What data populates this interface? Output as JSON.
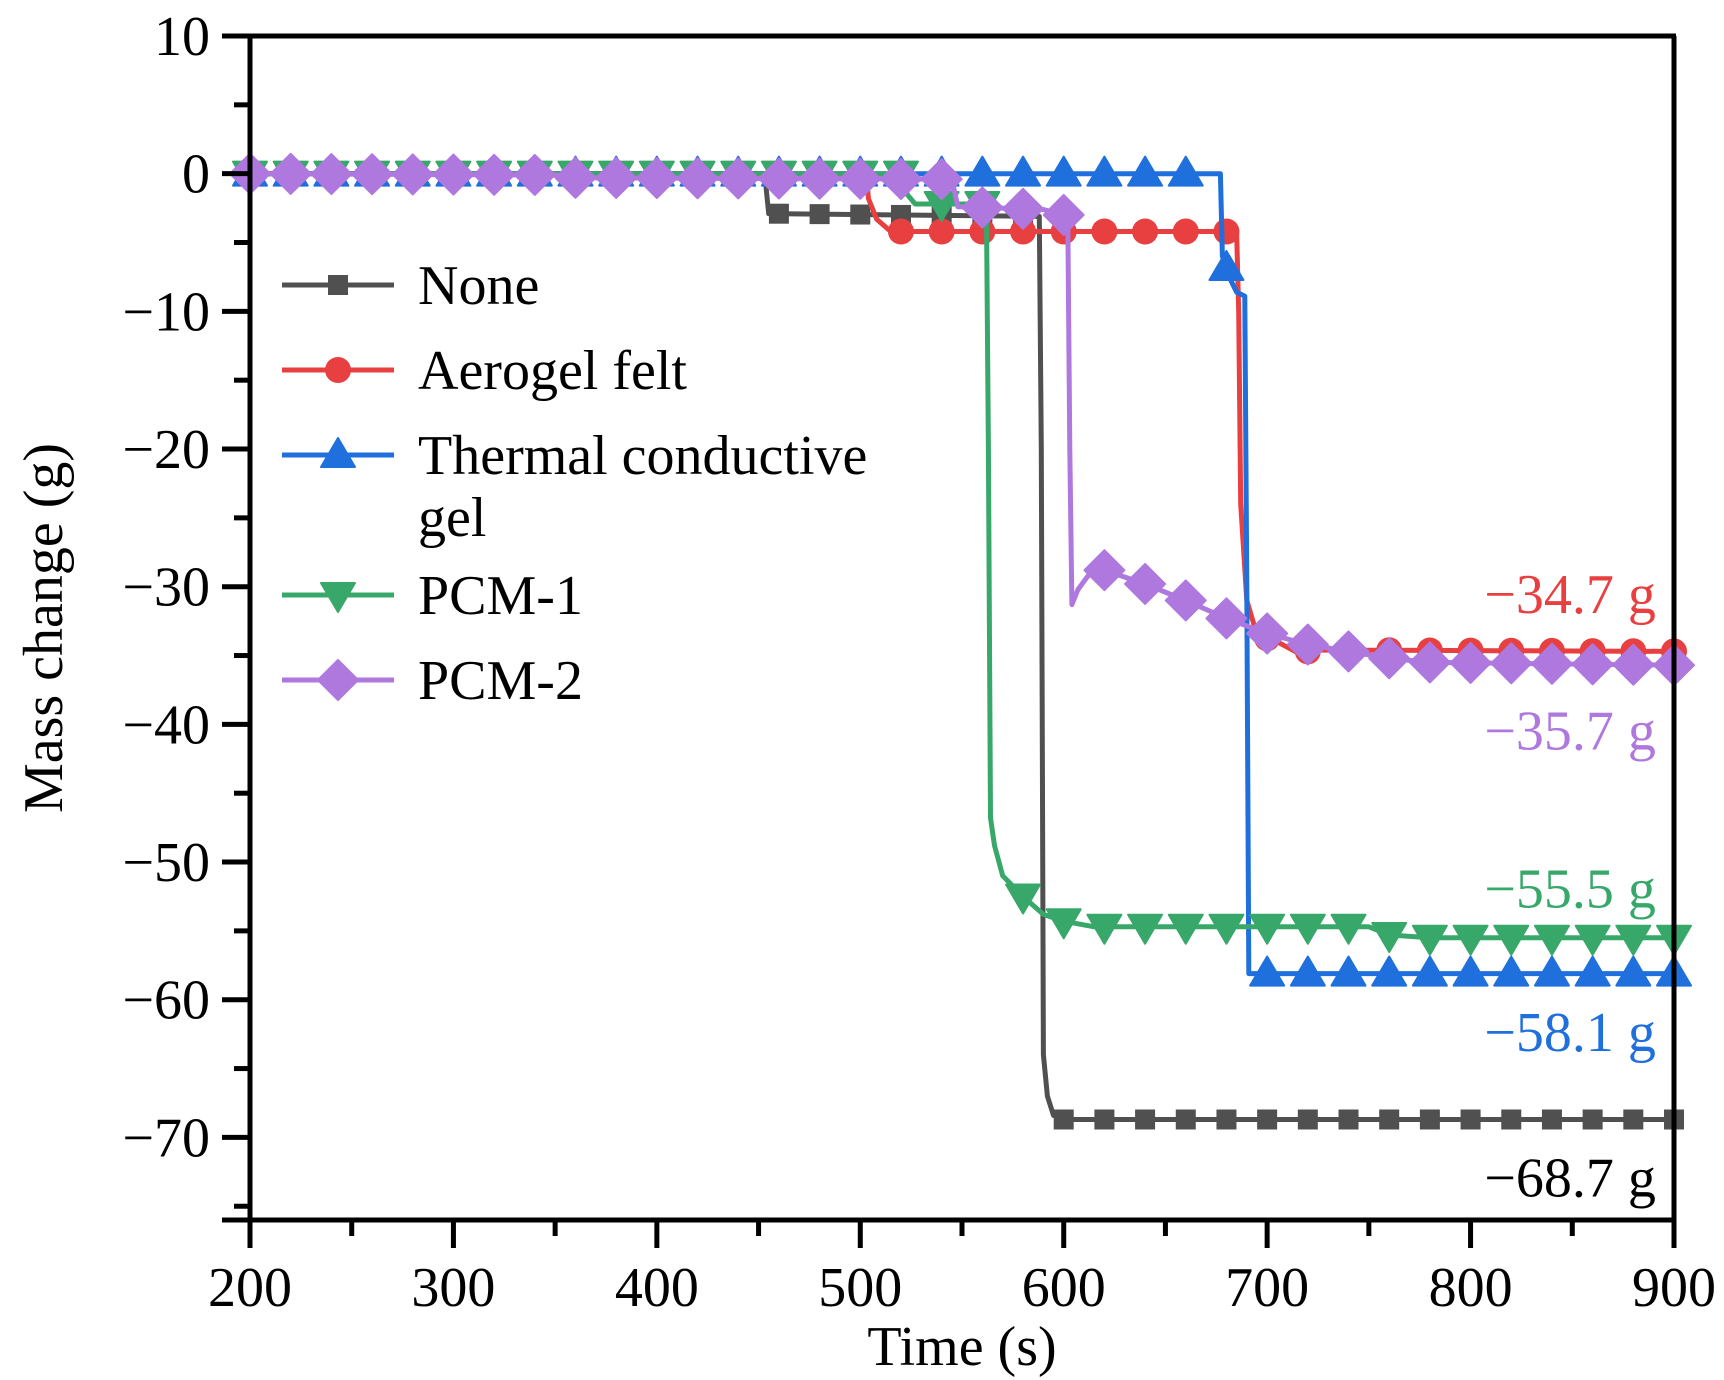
{
  "chart_data": {
    "type": "line",
    "title": "",
    "xlabel": "Time (s)",
    "ylabel": "Mass change (g)",
    "xlim": [
      200,
      900
    ],
    "ylim": [
      -76,
      10
    ],
    "xticks": [
      200,
      300,
      400,
      500,
      600,
      700,
      800,
      900
    ],
    "xtick_labels": [
      "200",
      "300",
      "400",
      "500",
      "600",
      "700",
      "800",
      "900"
    ],
    "yticks": [
      10,
      0,
      -10,
      -20,
      -30,
      -40,
      -50,
      -60,
      -70
    ],
    "ytick_labels": [
      "10",
      "0",
      "−10",
      "−20",
      "−30",
      "−40",
      "−50",
      "−60",
      "−70"
    ],
    "grid": false,
    "legend_position": "left",
    "marker_interval_s": 20,
    "series": [
      {
        "name": "None",
        "color": "#505050",
        "marker": "square",
        "points": [
          [
            200,
            0
          ],
          [
            453,
            0
          ],
          [
            455,
            -2.9
          ],
          [
            588,
            -3.1
          ],
          [
            589,
            -20
          ],
          [
            590,
            -64
          ],
          [
            592,
            -67
          ],
          [
            595,
            -68.4
          ],
          [
            600,
            -68.7
          ],
          [
            900,
            -68.7
          ]
        ]
      },
      {
        "name": "Aerogel felt",
        "color": "#e84040",
        "marker": "circle",
        "points": [
          [
            200,
            0
          ],
          [
            503,
            0
          ],
          [
            504,
            -1.8
          ],
          [
            508,
            -3.3
          ],
          [
            515,
            -4.2
          ],
          [
            685,
            -4.2
          ],
          [
            686,
            -10
          ],
          [
            687,
            -24
          ],
          [
            690,
            -31
          ],
          [
            695,
            -33.5
          ],
          [
            705,
            -34
          ],
          [
            715,
            -34.8
          ],
          [
            725,
            -34.6
          ],
          [
            900,
            -34.7
          ]
        ]
      },
      {
        "name": "Thermal conductive gel",
        "color": "#1f6fdd",
        "marker": "triangle-up",
        "points": [
          [
            200,
            0
          ],
          [
            677,
            0
          ],
          [
            678,
            -6
          ],
          [
            682,
            -7.7
          ],
          [
            685,
            -8.6
          ],
          [
            689,
            -8.9
          ],
          [
            690,
            -30
          ],
          [
            691,
            -58.1
          ],
          [
            900,
            -58.1
          ]
        ]
      },
      {
        "name": "PCM-1",
        "color": "#38a86a",
        "marker": "triangle-down",
        "points": [
          [
            200,
            0
          ],
          [
            522,
            0
          ],
          [
            523,
            -1.5
          ],
          [
            527,
            -2.2
          ],
          [
            562,
            -2.2
          ],
          [
            563,
            -20
          ],
          [
            564,
            -46.8
          ],
          [
            566,
            -48.8
          ],
          [
            570,
            -51
          ],
          [
            580,
            -52.5
          ],
          [
            590,
            -53.8
          ],
          [
            600,
            -54.3
          ],
          [
            615,
            -54.7
          ],
          [
            750,
            -54.7
          ],
          [
            760,
            -55.3
          ],
          [
            780,
            -55.5
          ],
          [
            900,
            -55.5
          ]
        ]
      },
      {
        "name": "PCM-2",
        "color": "#ae78de",
        "marker": "diamond",
        "points": [
          [
            200,
            0
          ],
          [
            350,
            -0.1
          ],
          [
            360,
            -0.3
          ],
          [
            545,
            -0.4
          ],
          [
            548,
            -2.4
          ],
          [
            590,
            -2.6
          ],
          [
            600,
            -3
          ],
          [
            602,
            -3.3
          ],
          [
            603,
            -20
          ],
          [
            604,
            -31.3
          ],
          [
            607,
            -30.2
          ],
          [
            612,
            -29.2
          ],
          [
            620,
            -28.8
          ],
          [
            640,
            -29.8
          ],
          [
            660,
            -31
          ],
          [
            680,
            -32.3
          ],
          [
            700,
            -33.4
          ],
          [
            720,
            -34.2
          ],
          [
            740,
            -34.7
          ],
          [
            760,
            -35.2
          ],
          [
            780,
            -35.5
          ],
          [
            900,
            -35.7
          ]
        ]
      }
    ],
    "annotations": [
      {
        "text": "−34.7 g",
        "series": "Aerogel felt",
        "x": 895,
        "y": -30.6,
        "color": "#e84040"
      },
      {
        "text": "−35.7 g",
        "series": "PCM-2",
        "x": 895,
        "y": -40.5,
        "color": "#ae78de"
      },
      {
        "text": "−55.5 g",
        "series": "PCM-1",
        "x": 895,
        "y": -52.0,
        "color": "#38a86a"
      },
      {
        "text": "−58.1 g",
        "series": "Thermal conductive gel",
        "x": 895,
        "y": -62.4,
        "color": "#1f6fdd"
      },
      {
        "text": "−68.7 g",
        "series": "None",
        "x": 895,
        "y": -73.0,
        "color": "#000000"
      }
    ],
    "legend": [
      {
        "label": "None",
        "label_line2": ""
      },
      {
        "label": "Aerogel felt",
        "label_line2": ""
      },
      {
        "label": "Thermal conductive",
        "label_line2": "gel"
      },
      {
        "label": "PCM-1",
        "label_line2": ""
      },
      {
        "label": "PCM-2",
        "label_line2": ""
      }
    ]
  }
}
